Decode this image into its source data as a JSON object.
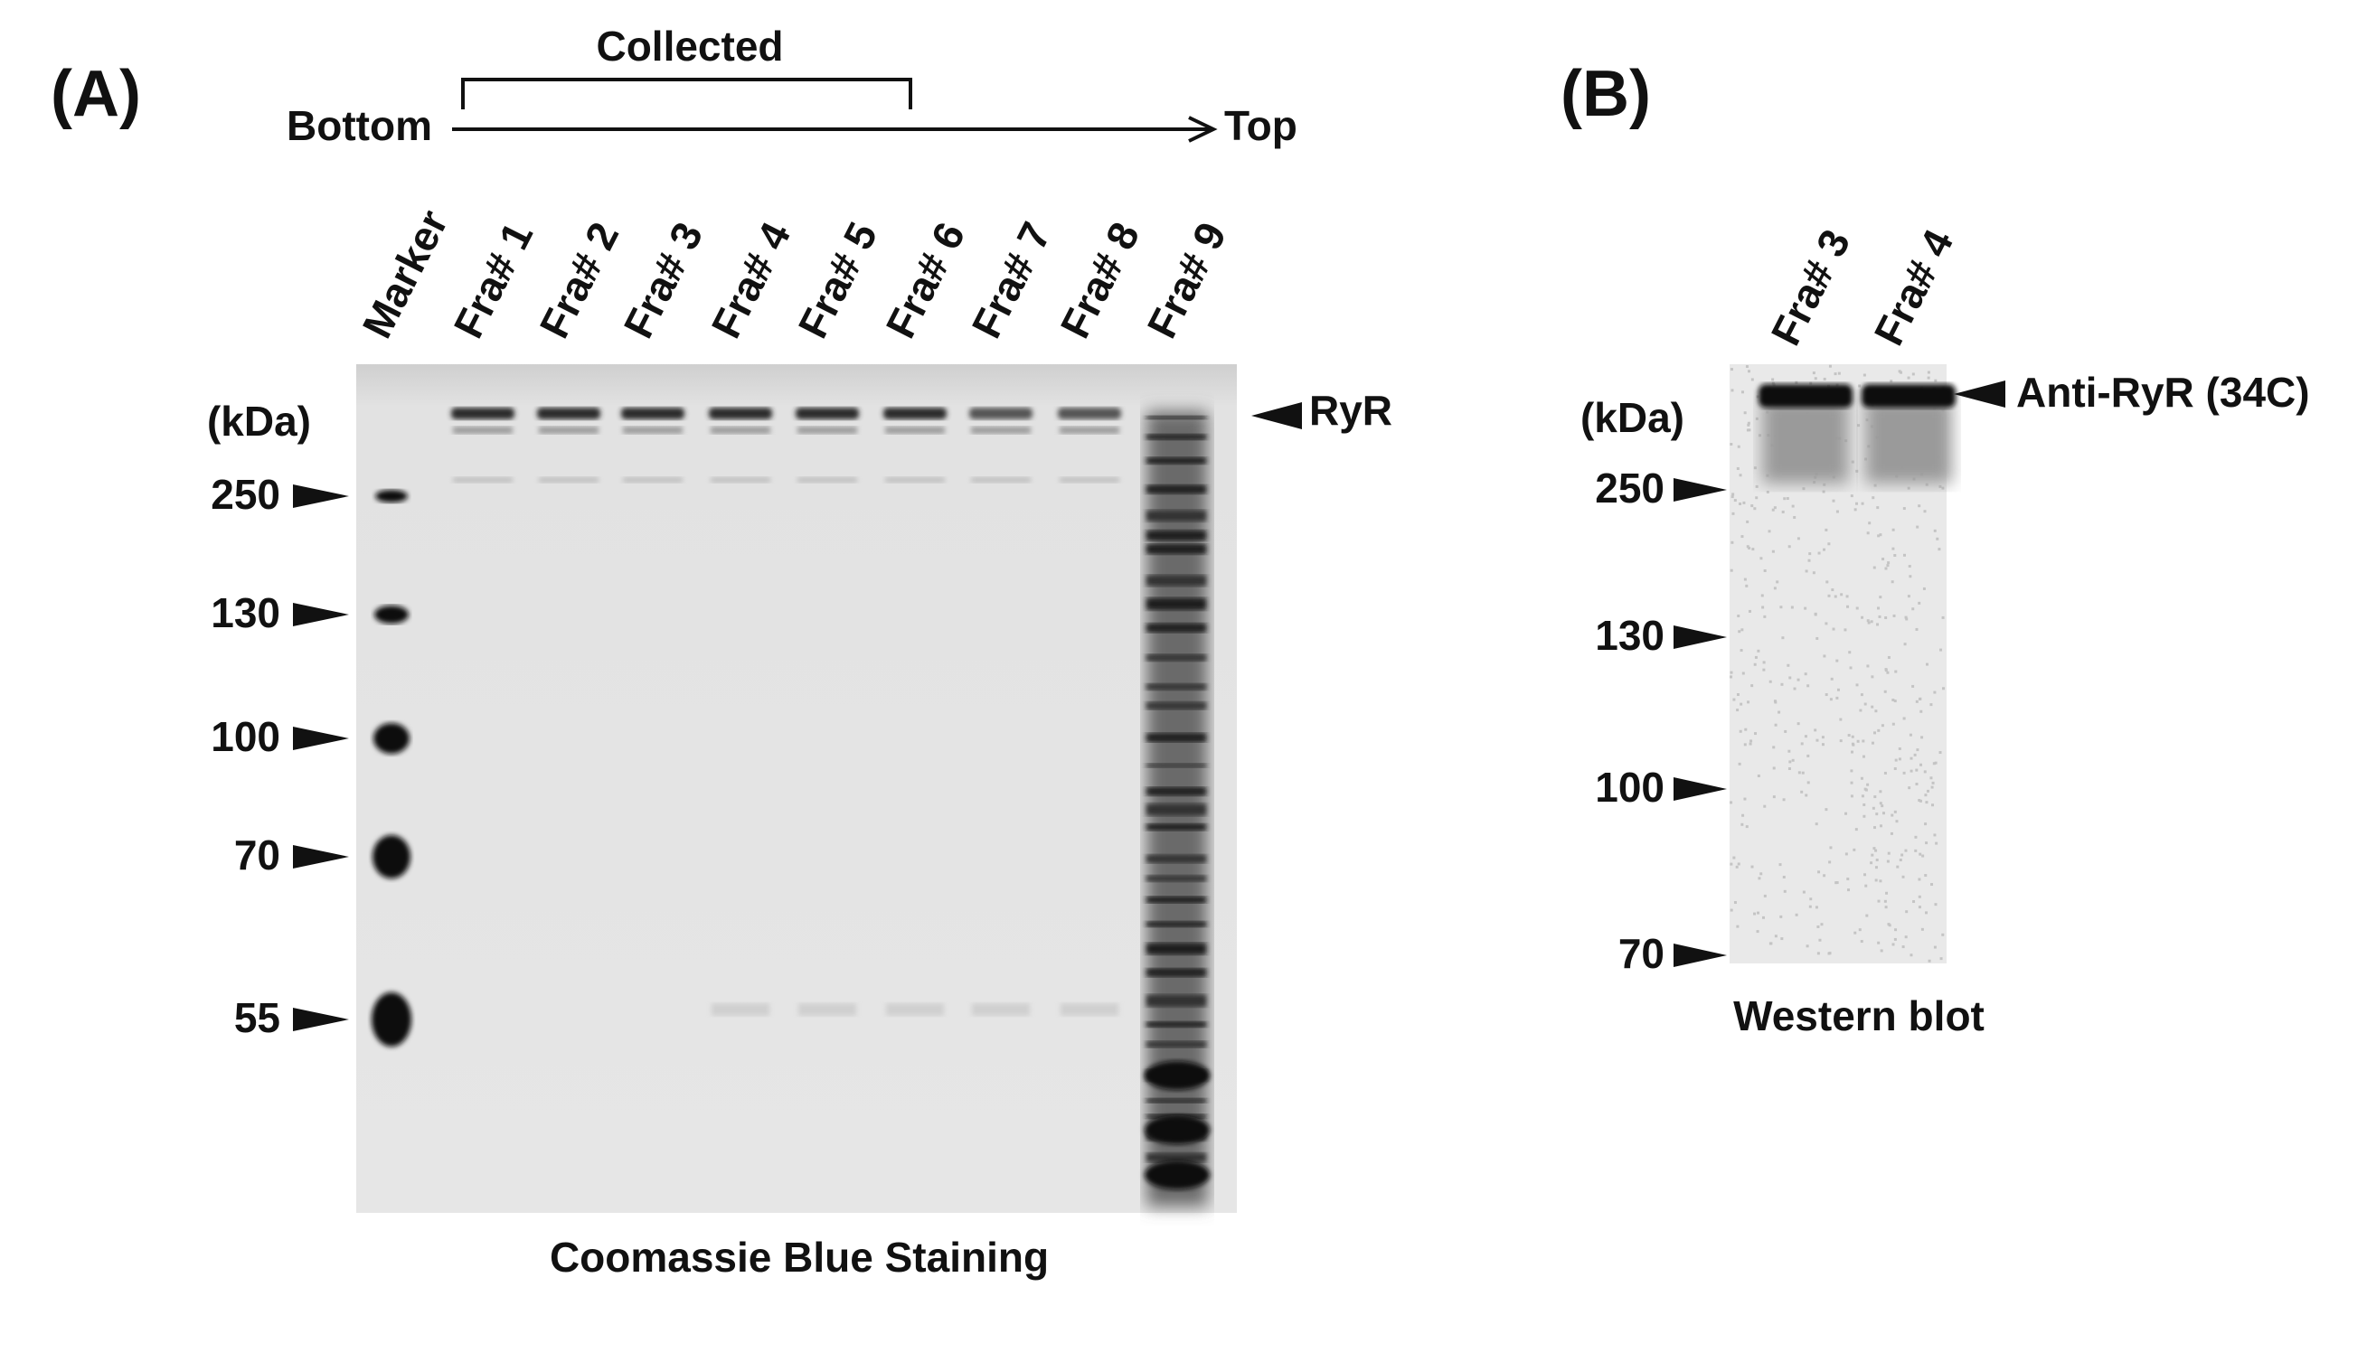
{
  "panel_a": {
    "label": "(A)",
    "collected": "Collected",
    "bottom": "Bottom",
    "top": "Top",
    "lanes": [
      "Marker",
      "Fra# 1",
      "Fra# 2",
      "Fra# 3",
      "Fra# 4",
      "Fra# 5",
      "Fra# 6",
      "Fra# 7",
      "Fra# 8",
      "Fra# 9"
    ],
    "unit": "(kDa)",
    "markers": [
      250,
      130,
      100,
      70,
      55
    ],
    "band_label": "RyR",
    "caption": "Coomassie Blue Staining"
  },
  "panel_b": {
    "label": "(B)",
    "lanes": [
      "Fra# 3",
      "Fra# 4"
    ],
    "unit": "(kDa)",
    "markers": [
      250,
      130,
      100,
      70
    ],
    "band_label": "Anti-RyR (34C)",
    "caption": "Western blot"
  }
}
